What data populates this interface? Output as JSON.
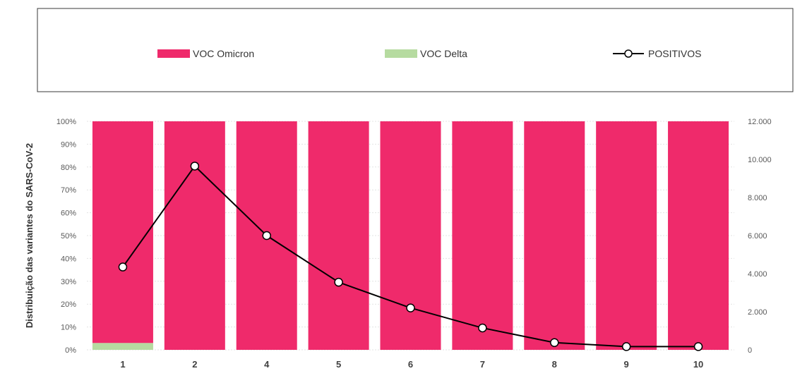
{
  "chart_data": {
    "type": "bar",
    "stacked": true,
    "legend_position": "top",
    "ylabel": "Distribuição das variantes do SARS-CoV-2",
    "categories": [
      "1",
      "2",
      "4",
      "5",
      "6",
      "7",
      "8",
      "9",
      "10"
    ],
    "ylim": [
      0,
      100
    ],
    "y_ticks": [
      "0%",
      "10%",
      "20%",
      "30%",
      "40%",
      "50%",
      "60%",
      "70%",
      "80%",
      "90%",
      "100%"
    ],
    "y2lim": [
      0,
      12000
    ],
    "y2_ticks": [
      "0",
      "2.000",
      "4.000",
      "6.000",
      "8.000",
      "10.000",
      "12.000"
    ],
    "grid": true,
    "series": [
      {
        "name": "VOC Delta",
        "type": "bar",
        "color": "#b6dba0",
        "values": [
          3,
          0,
          0,
          0,
          0,
          0,
          0,
          0,
          0
        ]
      },
      {
        "name": "VOC Omicron",
        "type": "bar",
        "color": "#ef2a6b",
        "values": [
          97,
          100,
          100,
          100,
          100,
          100,
          100,
          100,
          100
        ]
      },
      {
        "name": "POSITIVOS",
        "type": "line",
        "axis": "right",
        "color": "#000000",
        "values": [
          4350,
          9650,
          6000,
          3550,
          2200,
          1150,
          380,
          170,
          170
        ]
      }
    ]
  }
}
